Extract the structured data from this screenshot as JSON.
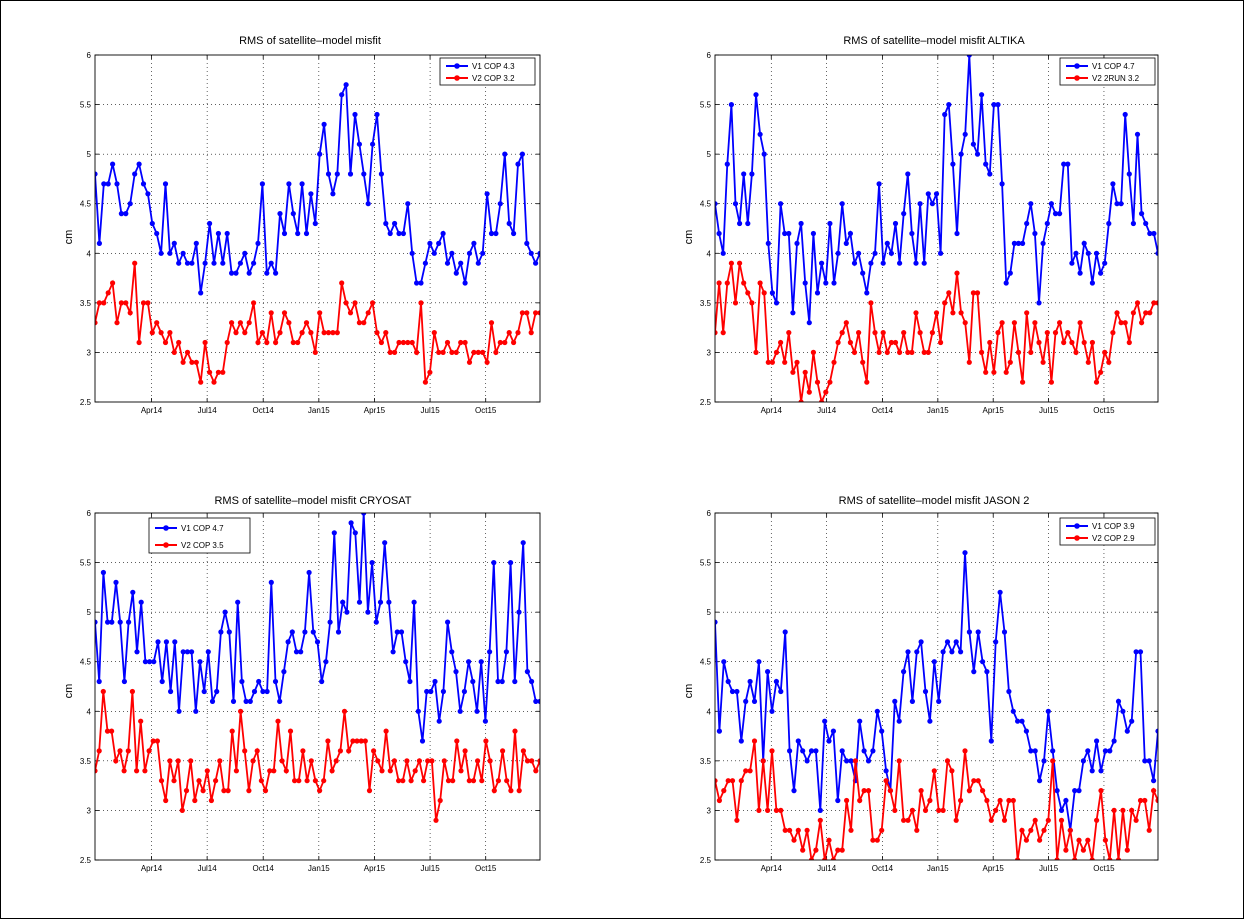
{
  "chart_data": [
    {
      "type": "line",
      "title": "RMS of satellite–model misfit",
      "ylabel": "cm",
      "ylim": [
        2.5,
        6
      ],
      "yticks": [
        "2.5",
        "3",
        "3.5",
        "4",
        "4.5",
        "5",
        "5.5",
        "6"
      ],
      "xticks": [
        "Apr14",
        "Jul14",
        "Oct14",
        "Jan15",
        "Apr15",
        "Jul15",
        "Oct15"
      ],
      "grid": true,
      "legend_placement": "top-right",
      "series": [
        {
          "name": "V1 COP 4.3",
          "color": "#0000ff",
          "values": [
            4.8,
            4.1,
            4.7,
            4.7,
            4.9,
            4.7,
            4.4,
            4.4,
            4.5,
            4.8,
            4.9,
            4.7,
            4.6,
            4.3,
            4.2,
            4.0,
            4.7,
            4.0,
            4.1,
            3.9,
            4.0,
            3.9,
            3.9,
            4.1,
            3.6,
            3.9,
            4.3,
            3.9,
            4.2,
            3.9,
            4.2,
            3.8,
            3.8,
            3.9,
            4.0,
            3.8,
            3.9,
            4.1,
            4.7,
            3.8,
            3.9,
            3.8,
            4.4,
            4.2,
            4.7,
            4.4,
            4.2,
            4.7,
            4.2,
            4.6,
            4.3,
            5.0,
            5.3,
            4.8,
            4.6,
            4.8,
            5.6,
            5.7,
            4.8,
            5.4,
            5.1,
            4.8,
            4.5,
            5.1,
            5.4,
            4.8,
            4.3,
            4.2,
            4.3,
            4.2,
            4.2,
            4.5,
            4.0,
            3.7,
            3.7,
            3.9,
            4.1,
            4.0,
            4.1,
            4.2,
            3.9,
            4.0,
            3.8,
            3.9,
            3.7,
            4.0,
            4.1,
            3.9,
            4.0,
            4.6,
            4.2,
            4.2,
            4.5,
            5.0,
            4.3,
            4.2,
            4.9,
            5.0,
            4.1,
            4.0,
            3.9,
            4.0
          ]
        },
        {
          "name": "V2 COP 3.2",
          "color": "#ff0000",
          "values": [
            3.3,
            3.5,
            3.5,
            3.6,
            3.7,
            3.3,
            3.5,
            3.5,
            3.4,
            3.9,
            3.1,
            3.5,
            3.5,
            3.2,
            3.3,
            3.2,
            3.1,
            3.2,
            3.0,
            3.1,
            2.9,
            3.0,
            2.9,
            2.9,
            2.7,
            3.1,
            2.8,
            2.7,
            2.8,
            2.8,
            3.1,
            3.3,
            3.2,
            3.3,
            3.2,
            3.3,
            3.5,
            3.1,
            3.2,
            3.1,
            3.4,
            3.1,
            3.2,
            3.4,
            3.3,
            3.1,
            3.1,
            3.2,
            3.3,
            3.2,
            3.0,
            3.4,
            3.2,
            3.2,
            3.2,
            3.2,
            3.7,
            3.5,
            3.4,
            3.5,
            3.3,
            3.3,
            3.4,
            3.5,
            3.2,
            3.1,
            3.2,
            3.0,
            3.0,
            3.1,
            3.1,
            3.1,
            3.1,
            3.0,
            3.5,
            2.7,
            2.8,
            3.2,
            3.0,
            3.0,
            3.1,
            3.0,
            3.0,
            3.1,
            3.1,
            2.9,
            3.0,
            3.0,
            3.0,
            2.9,
            3.3,
            3.0,
            3.1,
            3.1,
            3.2,
            3.1,
            3.2,
            3.4,
            3.4,
            3.2,
            3.4,
            3.4
          ]
        }
      ]
    },
    {
      "type": "line",
      "title": "RMS of satellite–model misfit ALTIKA",
      "ylabel": "cm",
      "ylim": [
        2.5,
        6
      ],
      "yticks": [
        "2.5",
        "3",
        "3.5",
        "4",
        "4.5",
        "5",
        "5.5",
        "6"
      ],
      "xticks": [
        "Apr14",
        "Jul14",
        "Oct14",
        "Jan15",
        "Apr15",
        "Jul15",
        "Oct15"
      ],
      "grid": true,
      "legend_placement": "top-right",
      "series": [
        {
          "name": "V1 COP 4.7",
          "color": "#0000ff",
          "values": [
            4.5,
            4.2,
            4.0,
            4.9,
            5.5,
            4.5,
            4.3,
            4.8,
            4.3,
            4.8,
            5.6,
            5.2,
            5.0,
            4.1,
            3.6,
            3.5,
            4.5,
            4.2,
            4.2,
            3.4,
            4.1,
            4.3,
            3.7,
            3.3,
            4.2,
            3.6,
            3.9,
            3.7,
            4.3,
            3.7,
            4.0,
            4.5,
            4.1,
            4.2,
            3.9,
            4.0,
            3.8,
            3.6,
            3.9,
            4.0,
            4.7,
            3.9,
            4.1,
            4.0,
            4.3,
            3.9,
            4.4,
            4.8,
            4.2,
            3.9,
            4.5,
            3.9,
            4.6,
            4.5,
            4.6,
            4.0,
            5.4,
            5.5,
            4.9,
            4.2,
            5.0,
            5.2,
            6.0,
            5.1,
            5.0,
            5.6,
            4.9,
            4.8,
            5.5,
            5.5,
            4.7,
            3.7,
            3.8,
            4.1,
            4.1,
            4.1,
            4.3,
            4.5,
            4.2,
            3.5,
            4.1,
            4.3,
            4.5,
            4.4,
            4.4,
            4.9,
            4.9,
            3.9,
            4.0,
            3.8,
            4.1,
            4.0,
            3.7,
            4.0,
            3.8,
            3.9,
            4.3,
            4.7,
            4.5,
            4.5,
            5.4,
            4.8,
            4.3,
            5.2,
            4.4,
            4.3,
            4.2,
            4.2,
            4.0
          ]
        },
        {
          "name": "V2 2RUN 3.2",
          "color": "#ff0000",
          "values": [
            3.2,
            3.7,
            3.2,
            3.7,
            3.9,
            3.5,
            3.9,
            3.7,
            3.6,
            3.5,
            3.0,
            3.7,
            3.6,
            2.9,
            2.9,
            3.0,
            3.1,
            2.9,
            3.2,
            2.8,
            2.9,
            2.5,
            2.8,
            2.6,
            3.0,
            2.7,
            2.5,
            2.6,
            2.7,
            2.9,
            3.1,
            3.2,
            3.3,
            3.1,
            3.0,
            3.2,
            2.9,
            2.7,
            3.5,
            3.2,
            3.0,
            3.2,
            3.0,
            3.1,
            3.1,
            3.0,
            3.2,
            3.0,
            3.0,
            3.4,
            3.2,
            3.0,
            3.0,
            3.2,
            3.4,
            3.1,
            3.5,
            3.6,
            3.4,
            3.8,
            3.4,
            3.3,
            2.9,
            3.6,
            3.6,
            3.0,
            2.8,
            3.1,
            2.8,
            3.2,
            3.3,
            2.8,
            2.9,
            3.3,
            3.0,
            2.7,
            3.4,
            3.0,
            3.3,
            3.1,
            2.9,
            3.2,
            2.7,
            3.2,
            3.3,
            3.1,
            3.2,
            3.1,
            3.0,
            3.3,
            3.1,
            2.9,
            3.1,
            2.7,
            2.8,
            3.0,
            2.9,
            3.2,
            3.4,
            3.3,
            3.3,
            3.1,
            3.4,
            3.5,
            3.3,
            3.4,
            3.4,
            3.5,
            3.5
          ]
        }
      ]
    },
    {
      "type": "line",
      "title": "RMS of satellite–model misfit CRYOSAT",
      "ylabel": "cm",
      "ylim": [
        2.5,
        6
      ],
      "yticks": [
        "2.5",
        "3",
        "3.5",
        "4",
        "4.5",
        "5",
        "5.5",
        "6"
      ],
      "xticks": [
        "Apr14",
        "Jul14",
        "Oct14",
        "Jan15",
        "Apr15",
        "Jul15",
        "Oct15"
      ],
      "grid": true,
      "legend_placement": "top-left",
      "series": [
        {
          "name": "V1 COP 4.7",
          "color": "#0000ff",
          "values": [
            4.9,
            4.3,
            5.4,
            4.9,
            4.9,
            5.3,
            4.9,
            4.3,
            4.9,
            5.2,
            4.6,
            5.1,
            4.5,
            4.5,
            4.5,
            4.7,
            4.3,
            4.7,
            4.2,
            4.7,
            4.0,
            4.6,
            4.6,
            4.6,
            4.0,
            4.5,
            4.2,
            4.6,
            4.1,
            4.2,
            4.8,
            5.0,
            4.8,
            4.1,
            5.1,
            4.3,
            4.1,
            4.1,
            4.2,
            4.3,
            4.2,
            4.2,
            5.3,
            4.3,
            4.1,
            4.4,
            4.7,
            4.8,
            4.6,
            4.6,
            4.8,
            5.4,
            4.8,
            4.7,
            4.3,
            4.5,
            4.9,
            5.8,
            4.8,
            5.1,
            5.0,
            5.9,
            5.8,
            5.1,
            6.0,
            5.0,
            5.5,
            4.9,
            5.1,
            5.7,
            5.1,
            4.6,
            4.8,
            4.8,
            4.5,
            4.3,
            5.1,
            4.0,
            3.7,
            4.2,
            4.2,
            4.3,
            3.9,
            4.2,
            4.9,
            4.6,
            4.4,
            4.0,
            4.2,
            4.5,
            4.3,
            4.0,
            4.5,
            3.9,
            4.6,
            5.5,
            4.3,
            4.3,
            4.6,
            5.5,
            4.3,
            5.0,
            5.7,
            4.4,
            4.3,
            4.1,
            4.1
          ]
        },
        {
          "name": "V2 COP 3.5",
          "color": "#ff0000",
          "values": [
            3.4,
            3.6,
            4.2,
            3.8,
            3.8,
            3.5,
            3.6,
            3.4,
            3.6,
            4.2,
            3.4,
            3.9,
            3.4,
            3.6,
            3.7,
            3.7,
            3.3,
            3.1,
            3.5,
            3.3,
            3.5,
            3.0,
            3.2,
            3.5,
            3.1,
            3.3,
            3.2,
            3.4,
            3.1,
            3.3,
            3.5,
            3.2,
            3.2,
            3.8,
            3.4,
            4.0,
            3.6,
            3.2,
            3.5,
            3.6,
            3.3,
            3.2,
            3.4,
            3.4,
            3.9,
            3.5,
            3.4,
            3.8,
            3.3,
            3.3,
            3.6,
            3.3,
            3.5,
            3.3,
            3.2,
            3.3,
            3.7,
            3.4,
            3.5,
            3.6,
            4.0,
            3.6,
            3.7,
            3.7,
            3.7,
            3.7,
            3.2,
            3.6,
            3.5,
            3.4,
            3.8,
            3.4,
            3.5,
            3.3,
            3.3,
            3.5,
            3.3,
            3.4,
            3.5,
            3.3,
            3.5,
            3.5,
            2.9,
            3.1,
            3.5,
            3.3,
            3.3,
            3.7,
            3.4,
            3.6,
            3.3,
            3.3,
            3.5,
            3.3,
            3.7,
            3.5,
            3.2,
            3.3,
            3.6,
            3.3,
            3.2,
            3.8,
            3.2,
            3.6,
            3.5,
            3.5,
            3.4,
            3.5
          ]
        }
      ]
    },
    {
      "type": "line",
      "title": "RMS of satellite–model misfit JASON 2",
      "ylabel": "cm",
      "ylim": [
        2.5,
        6
      ],
      "yticks": [
        "2.5",
        "3",
        "3.5",
        "4",
        "4.5",
        "5",
        "5.5",
        "6"
      ],
      "xticks": [
        "Apr14",
        "Jul14",
        "Oct14",
        "Jan15",
        "Apr15",
        "Jul15",
        "Oct15"
      ],
      "grid": true,
      "legend_placement": "top-right",
      "series": [
        {
          "name": "V1 COP 3.9",
          "color": "#0000ff",
          "values": [
            4.9,
            3.8,
            4.5,
            4.3,
            4.2,
            4.2,
            3.7,
            4.1,
            4.3,
            4.1,
            4.5,
            3.5,
            4.4,
            4.0,
            4.3,
            4.2,
            4.8,
            3.6,
            3.2,
            3.7,
            3.6,
            3.5,
            3.6,
            3.6,
            3.0,
            3.9,
            3.7,
            3.8,
            3.1,
            3.6,
            3.5,
            3.5,
            3.3,
            3.9,
            3.6,
            3.5,
            3.6,
            4.0,
            3.8,
            3.4,
            3.2,
            4.1,
            3.9,
            4.4,
            4.6,
            4.1,
            4.6,
            4.7,
            4.2,
            3.9,
            4.5,
            4.1,
            4.6,
            4.7,
            4.6,
            4.7,
            4.6,
            5.6,
            4.8,
            4.4,
            4.8,
            4.5,
            4.4,
            3.7,
            4.7,
            5.2,
            4.8,
            4.2,
            4.0,
            3.9,
            3.9,
            3.8,
            3.6,
            3.6,
            3.3,
            3.5,
            4.0,
            3.6,
            3.2,
            3.0,
            3.1,
            2.8,
            3.2,
            3.2,
            3.5,
            3.6,
            3.4,
            3.7,
            3.4,
            3.6,
            3.6,
            3.7,
            4.1,
            4.0,
            3.8,
            3.9,
            4.6,
            4.6,
            3.5,
            3.5,
            3.3,
            3.8
          ]
        },
        {
          "name": "V2 COP 2.9",
          "color": "#ff0000",
          "values": [
            3.3,
            3.1,
            3.2,
            3.3,
            3.3,
            2.9,
            3.3,
            3.4,
            3.4,
            3.7,
            3.0,
            3.5,
            3.0,
            3.6,
            3.0,
            3.0,
            2.8,
            2.8,
            2.7,
            2.8,
            2.6,
            2.8,
            2.5,
            2.6,
            2.9,
            2.5,
            2.7,
            2.5,
            2.6,
            2.6,
            3.1,
            2.8,
            3.5,
            3.1,
            3.2,
            3.2,
            2.7,
            2.7,
            2.8,
            3.3,
            3.2,
            3.0,
            3.5,
            2.9,
            2.9,
            3.0,
            2.8,
            3.2,
            3.0,
            3.1,
            3.4,
            3.0,
            3.0,
            3.5,
            3.4,
            2.9,
            3.1,
            3.6,
            3.2,
            3.3,
            3.3,
            3.2,
            3.1,
            2.9,
            3.0,
            3.1,
            2.9,
            3.1,
            3.1,
            2.5,
            2.8,
            2.7,
            2.8,
            2.9,
            2.7,
            2.8,
            2.9,
            3.5,
            2.5,
            2.9,
            2.6,
            2.8,
            2.5,
            2.7,
            2.6,
            2.7,
            2.5,
            2.9,
            3.2,
            2.7,
            2.5,
            3.0,
            2.5,
            3.0,
            2.6,
            3.0,
            2.9,
            3.1,
            3.1,
            2.8,
            3.2,
            3.1
          ]
        }
      ]
    }
  ]
}
